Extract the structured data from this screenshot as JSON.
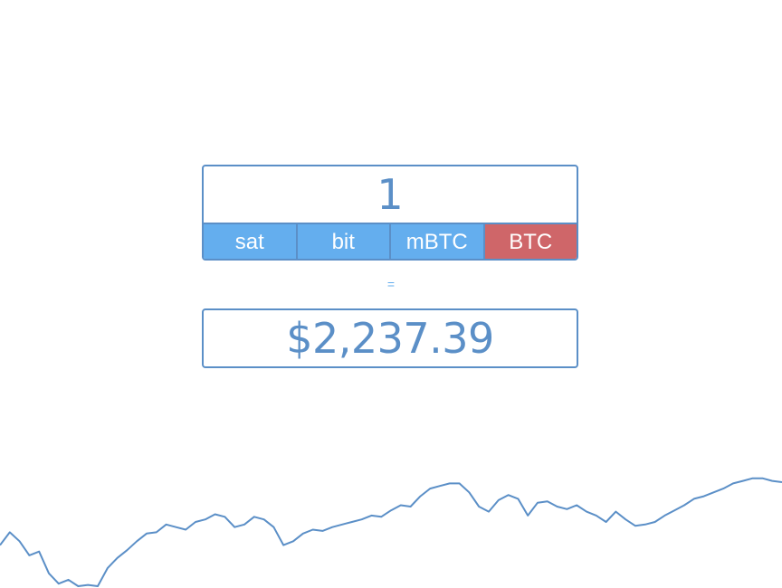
{
  "converter": {
    "amount_value": "1",
    "units": [
      {
        "label": "sat",
        "active": false
      },
      {
        "label": "bit",
        "active": false
      },
      {
        "label": "mBTC",
        "active": false
      },
      {
        "label": "BTC",
        "active": true
      }
    ],
    "equals_sign": "=",
    "result": "$2,237.39"
  },
  "colors": {
    "primary": "#5b8fc7",
    "unit_bg": "#64aeee",
    "active_unit_bg": "#cf6669"
  },
  "chart_data": {
    "type": "line",
    "title": "",
    "xlabel": "",
    "ylabel": "",
    "grid": false,
    "legend": "none",
    "ylim": [
      0,
      1
    ],
    "series": [
      {
        "values": [
          0.32,
          0.42,
          0.35,
          0.24,
          0.27,
          0.1,
          0.02,
          0.05,
          0.0,
          0.01,
          0.0,
          0.14,
          0.22,
          0.28,
          0.35,
          0.41,
          0.42,
          0.48,
          0.46,
          0.44,
          0.5,
          0.52,
          0.56,
          0.54,
          0.46,
          0.48,
          0.54,
          0.52,
          0.46,
          0.32,
          0.35,
          0.41,
          0.44,
          0.43,
          0.46,
          0.48,
          0.5,
          0.52,
          0.55,
          0.54,
          0.59,
          0.63,
          0.62,
          0.7,
          0.76,
          0.78,
          0.8,
          0.8,
          0.73,
          0.62,
          0.58,
          0.67,
          0.71,
          0.68,
          0.55,
          0.65,
          0.66,
          0.62,
          0.6,
          0.63,
          0.58,
          0.55,
          0.5,
          0.58,
          0.52,
          0.47,
          0.48,
          0.5,
          0.55,
          0.59,
          0.63,
          0.68,
          0.7,
          0.73,
          0.76,
          0.8,
          0.82,
          0.84,
          0.84,
          0.82,
          0.81
        ]
      }
    ]
  }
}
